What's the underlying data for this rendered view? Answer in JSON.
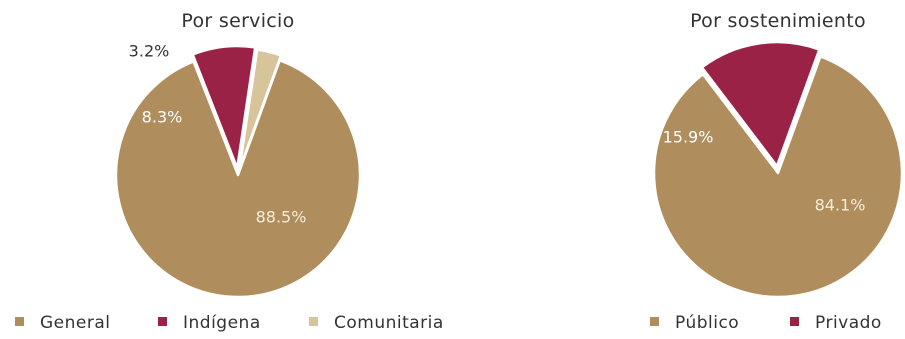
{
  "chart_data": [
    {
      "type": "pie",
      "title": "Por servicio",
      "categories": [
        "General",
        "Indígena",
        "Comunitaria"
      ],
      "values": [
        88.5,
        8.3,
        3.2
      ],
      "labels": [
        "88.5%",
        "8.3%",
        "3.2%"
      ],
      "colors": [
        "#b08d5c",
        "#9b2247",
        "#d8c49b"
      ],
      "label_colors": [
        "#f5ecd9",
        "#ffffff",
        "#333333"
      ],
      "legend_position": "bottom"
    },
    {
      "type": "pie",
      "title": "Por sostenimiento",
      "categories": [
        "Público",
        "Privado"
      ],
      "values": [
        84.1,
        15.9
      ],
      "labels": [
        "84.1%",
        "15.9%"
      ],
      "colors": [
        "#b08d5c",
        "#9b2247"
      ],
      "label_colors": [
        "#f5ecd9",
        "#ffffff"
      ],
      "legend_position": "bottom"
    }
  ]
}
